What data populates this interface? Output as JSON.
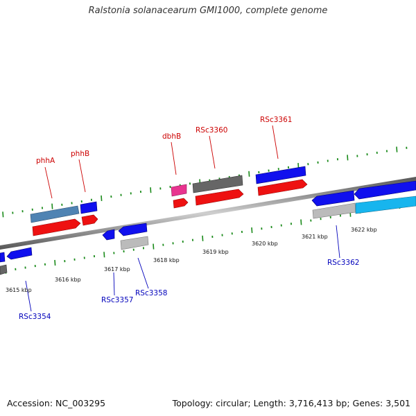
{
  "title": "Ralstonia solanacearum GMI1000, complete genome",
  "footer": {
    "accession": "Accession: NC_003295",
    "summary": "Topology: circular; Length: 3,716,413 bp; Genes: 3,501"
  },
  "colors": {
    "backbone": "#777777",
    "tick": "#1a8a1a",
    "label_red": "#cc0000",
    "label_blue": "#0000bb",
    "gene_blue": "#1010ee",
    "gene_red": "#ee1111",
    "gene_gray": "#666666",
    "gene_lightgray": "#bbbbbb",
    "gene_steel": "#4f83b3",
    "gene_pink": "#e8348f",
    "gene_cyan": "#17b5ee"
  },
  "scale_labels": [
    "3615 kbp",
    "3616 kbp",
    "3617 kbp",
    "3618 kbp",
    "3619 kbp",
    "3620 kbp",
    "3621 kbp",
    "3622 kbp"
  ],
  "gene_labels_top": [
    "phhA",
    "phhB",
    "dbhB",
    "RSc3360",
    "RSc3361"
  ],
  "gene_labels_bottom": [
    "RSc3354",
    "RSc3357",
    "RSc3358",
    "RSc3362"
  ]
}
